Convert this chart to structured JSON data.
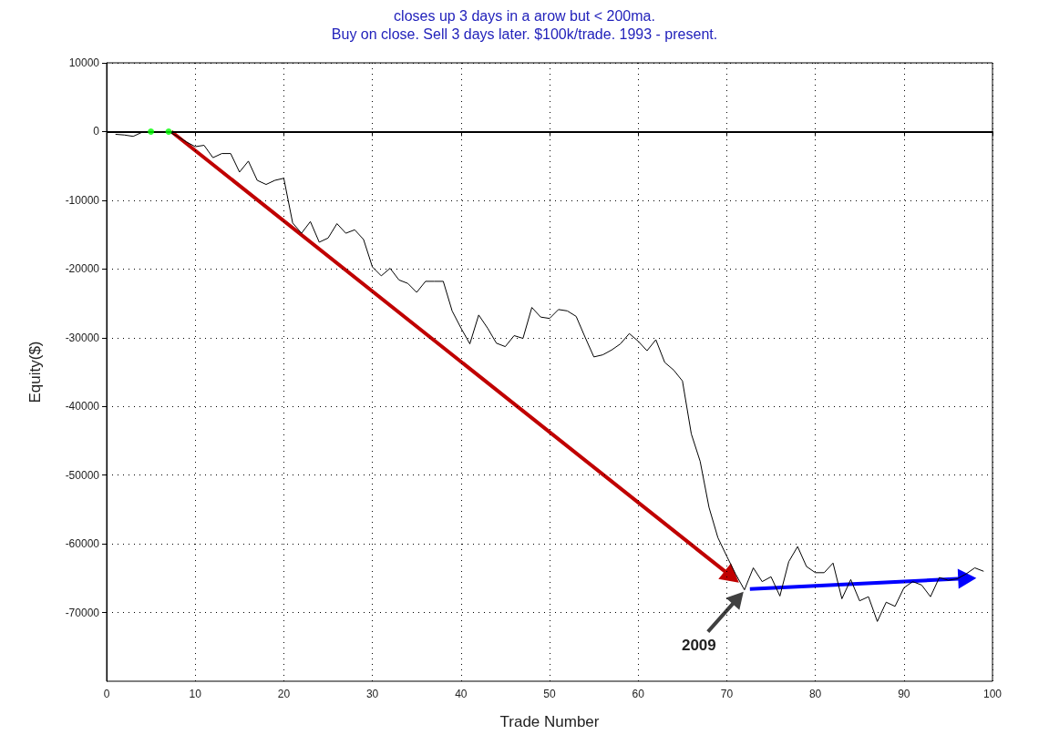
{
  "chart_data": {
    "type": "line",
    "title": "closes up 3 days in a arow but < 200ma.",
    "subtitle": "Buy on close. Sell 3 days later. $100k/trade. 1993 - present.",
    "xlabel": "Trade Number",
    "ylabel": "Equity($)",
    "xlim": [
      0,
      100
    ],
    "xticks": [
      0,
      10,
      20,
      30,
      40,
      50,
      60,
      70,
      80,
      90,
      100
    ],
    "ylim": [
      -80000,
      10000
    ],
    "yticks": [
      -70000,
      -60000,
      -50000,
      -40000,
      -30000,
      -20000,
      -10000,
      0,
      10000
    ],
    "grid": true,
    "marker": "none",
    "line_style": "solid",
    "ref_lines": [
      {
        "axis": "y",
        "value": 0,
        "color": "#000000",
        "line_style": "solid"
      }
    ],
    "annotations": [
      "2009"
    ],
    "series": [
      {
        "color": "#000000",
        "x": [
          1,
          2,
          3,
          4,
          5,
          6,
          7,
          8,
          9,
          10,
          11,
          12,
          13,
          14,
          15,
          16,
          17,
          18,
          19,
          20,
          21,
          22,
          23,
          24,
          25,
          26,
          27,
          28,
          29,
          30,
          31,
          32,
          33,
          34,
          35,
          36,
          37,
          38,
          39,
          40,
          41,
          42,
          43,
          44,
          45,
          46,
          47,
          48,
          49,
          50,
          51,
          52,
          53,
          54,
          55,
          56,
          57,
          58,
          59,
          60,
          61,
          62,
          63,
          64,
          65,
          66,
          67,
          68,
          69,
          70,
          71,
          72,
          73,
          74,
          75,
          76,
          77,
          78,
          79,
          80,
          81,
          82,
          83,
          84,
          85,
          86,
          87,
          88,
          89,
          90,
          91,
          92,
          93,
          94,
          95,
          96,
          97,
          98,
          99
        ],
        "values": [
          -400,
          -500,
          -700,
          -100,
          0,
          0,
          0,
          -700,
          -1500,
          -2200,
          -2000,
          -3800,
          -3200,
          -3200,
          -5900,
          -4300,
          -7100,
          -7700,
          -7100,
          -6800,
          -13300,
          -14800,
          -13100,
          -16100,
          -15500,
          -13400,
          -14800,
          -14300,
          -15700,
          -19700,
          -21000,
          -19900,
          -21600,
          -22100,
          -23400,
          -21800,
          -21800,
          -21800,
          -26100,
          -28600,
          -30900,
          -26700,
          -28600,
          -30800,
          -31300,
          -29700,
          -30100,
          -25600,
          -27000,
          -27200,
          -25900,
          -26100,
          -26900,
          -29900,
          -32800,
          -32500,
          -31800,
          -30900,
          -29400,
          -30500,
          -31900,
          -30300,
          -33600,
          -34700,
          -36300,
          -44000,
          -48000,
          -54700,
          -59100,
          -61800,
          -64400,
          -66700,
          -63500,
          -65500,
          -64800,
          -67600,
          -62600,
          -60400,
          -63300,
          -64200,
          -64200,
          -62800,
          -68000,
          -65200,
          -68300,
          -67700,
          -71300,
          -68500,
          -69100,
          -66400,
          -65500,
          -66000,
          -67700,
          -64900,
          -65300,
          -65100,
          -64400,
          -63500,
          -64000
        ]
      },
      {
        "type": "scatter",
        "color": "#00ff00",
        "marker": "circle",
        "x": [
          5,
          7
        ],
        "values": [
          0,
          0
        ]
      }
    ]
  }
}
